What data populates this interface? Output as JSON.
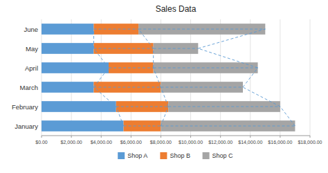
{
  "chart_data": {
    "type": "bar",
    "title": "Sales Data",
    "orientation": "horizontal",
    "stacked": true,
    "categories": [
      "January",
      "February",
      "March",
      "April",
      "May",
      "June"
    ],
    "series": [
      {
        "name": "Shop A",
        "color": "#5B9BD5",
        "values": [
          5500,
          5000,
          3500,
          4500,
          3500,
          3500
        ]
      },
      {
        "name": "Shop B",
        "color": "#ED7D31",
        "values": [
          2500,
          3500,
          4500,
          3000,
          4000,
          3000
        ]
      },
      {
        "name": "Shop C",
        "color": "#A5A5A5",
        "values": [
          9000,
          7500,
          5500,
          7000,
          3000,
          8500
        ]
      }
    ],
    "xlim": [
      0,
      18000
    ],
    "xticks": [
      {
        "value": 0,
        "label": "$0.00"
      },
      {
        "value": 2000,
        "label": "$2,000.00"
      },
      {
        "value": 4000,
        "label": "$4,000.00"
      },
      {
        "value": 6000,
        "label": "$6,000.00"
      },
      {
        "value": 8000,
        "label": "$8,000.00"
      },
      {
        "value": 10000,
        "label": "$10,000.00"
      },
      {
        "value": 12000,
        "label": "$12,000.00"
      },
      {
        "value": 14000,
        "label": "$14,000.00"
      },
      {
        "value": 16000,
        "label": "$16,000.00"
      },
      {
        "value": 18000,
        "label": "$18,000.00"
      }
    ],
    "grid": true,
    "legend": "bottom"
  }
}
